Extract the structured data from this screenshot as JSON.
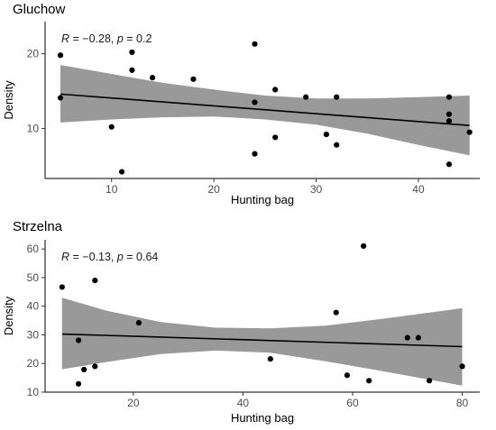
{
  "chart_data": [
    {
      "type": "scatter",
      "panel_title": "Gluchow",
      "xlabel": "Hunting bag",
      "ylabel": "Density",
      "xlim": [
        3.5,
        46.0
      ],
      "ylim": [
        3.3,
        24.3
      ],
      "xticks": [
        10,
        20,
        30,
        40
      ],
      "yticks": [
        10,
        20
      ],
      "annotation": {
        "r_value": "−0.28",
        "p_value": "0.2"
      },
      "regression": {
        "x_start": 5,
        "y_start": 14.6,
        "x_end": 45,
        "y_end": 10.4
      },
      "confidence_band": [
        {
          "x": 5,
          "lower": 10.8,
          "upper": 18.5
        },
        {
          "x": 10,
          "lower": 11.2,
          "upper": 17.3
        },
        {
          "x": 15,
          "lower": 11.5,
          "upper": 16.1
        },
        {
          "x": 20,
          "lower": 11.6,
          "upper": 15.2
        },
        {
          "x": 25,
          "lower": 11.2,
          "upper": 14.4
        },
        {
          "x": 30,
          "lower": 10.5,
          "upper": 14.0
        },
        {
          "x": 35,
          "lower": 9.3,
          "upper": 14.0
        },
        {
          "x": 40,
          "lower": 7.8,
          "upper": 14.2
        },
        {
          "x": 45,
          "lower": 6.4,
          "upper": 14.4
        }
      ],
      "points": [
        {
          "x": 5,
          "y": 19.8
        },
        {
          "x": 5,
          "y": 14.1
        },
        {
          "x": 10,
          "y": 10.2
        },
        {
          "x": 11,
          "y": 4.2
        },
        {
          "x": 12,
          "y": 20.2
        },
        {
          "x": 12,
          "y": 17.8
        },
        {
          "x": 14,
          "y": 16.8
        },
        {
          "x": 18,
          "y": 16.6
        },
        {
          "x": 24,
          "y": 21.3
        },
        {
          "x": 24,
          "y": 13.5
        },
        {
          "x": 24,
          "y": 6.6
        },
        {
          "x": 26,
          "y": 15.2
        },
        {
          "x": 26,
          "y": 8.8
        },
        {
          "x": 29,
          "y": 14.2
        },
        {
          "x": 31,
          "y": 9.2
        },
        {
          "x": 32,
          "y": 14.2
        },
        {
          "x": 32,
          "y": 7.8
        },
        {
          "x": 43,
          "y": 14.2
        },
        {
          "x": 43,
          "y": 11.9
        },
        {
          "x": 43,
          "y": 11.0
        },
        {
          "x": 43,
          "y": 5.2
        },
        {
          "x": 45,
          "y": 9.5
        }
      ]
    },
    {
      "type": "scatter",
      "panel_title": "Strzelna",
      "xlabel": "Hunting bag",
      "ylabel": "Density",
      "xlim": [
        3.9,
        83.2
      ],
      "ylim": [
        10.0,
        63.2
      ],
      "xticks": [
        20,
        40,
        60,
        80
      ],
      "yticks": [
        10,
        20,
        30,
        40,
        50,
        60
      ],
      "annotation": {
        "r_value": "−0.13",
        "p_value": "0.64"
      },
      "regression": {
        "x_start": 7,
        "y_start": 30.3,
        "x_end": 80,
        "y_end": 25.9
      },
      "confidence_band": [
        {
          "x": 7,
          "lower": 18.0,
          "upper": 43.0
        },
        {
          "x": 15,
          "lower": 20.5,
          "upper": 38.5
        },
        {
          "x": 25,
          "lower": 23.3,
          "upper": 34.5
        },
        {
          "x": 35,
          "lower": 24.5,
          "upper": 32.5
        },
        {
          "x": 45,
          "lower": 23.8,
          "upper": 32.3
        },
        {
          "x": 55,
          "lower": 20.8,
          "upper": 33.2
        },
        {
          "x": 65,
          "lower": 17.5,
          "upper": 35.5
        },
        {
          "x": 80,
          "lower": 12.3,
          "upper": 39.3
        }
      ],
      "points": [
        {
          "x": 7,
          "y": 46.7
        },
        {
          "x": 10,
          "y": 28.1
        },
        {
          "x": 10,
          "y": 12.9
        },
        {
          "x": 11,
          "y": 17.9
        },
        {
          "x": 13,
          "y": 49.0
        },
        {
          "x": 13,
          "y": 19.0
        },
        {
          "x": 21,
          "y": 34.2
        },
        {
          "x": 45,
          "y": 21.6
        },
        {
          "x": 57,
          "y": 37.8
        },
        {
          "x": 59,
          "y": 15.9
        },
        {
          "x": 62,
          "y": 61.0
        },
        {
          "x": 63,
          "y": 14.0
        },
        {
          "x": 70,
          "y": 29.0
        },
        {
          "x": 72,
          "y": 29.0
        },
        {
          "x": 74,
          "y": 14.0
        },
        {
          "x": 80,
          "y": 19.0
        }
      ]
    }
  ]
}
